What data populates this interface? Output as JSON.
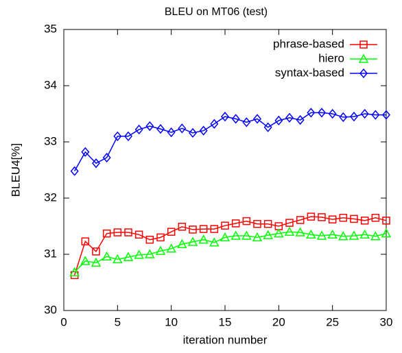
{
  "chart_data": {
    "type": "line",
    "title": "BLEU on MT06 (test)",
    "x_label": "iteration number",
    "y_label": "BLEU4[%]",
    "x": [
      1,
      2,
      3,
      4,
      5,
      6,
      7,
      8,
      9,
      10,
      11,
      12,
      13,
      14,
      15,
      16,
      17,
      18,
      19,
      20,
      21,
      22,
      23,
      24,
      25,
      26,
      27,
      28,
      29,
      30
    ],
    "series": [
      {
        "name": "phrase-based",
        "color": "#ff0000",
        "marker": "square",
        "values": [
          30.63,
          31.23,
          31.05,
          31.37,
          31.39,
          31.39,
          31.35,
          31.26,
          31.3,
          31.4,
          31.49,
          31.44,
          31.45,
          31.45,
          31.51,
          31.55,
          31.59,
          31.54,
          31.54,
          31.5,
          31.56,
          31.61,
          31.67,
          31.66,
          31.62,
          31.65,
          31.63,
          31.6,
          31.65,
          31.6
        ]
      },
      {
        "name": "hiero",
        "color": "#00ff00",
        "marker": "triangle",
        "values": [
          30.68,
          30.88,
          30.85,
          30.96,
          30.91,
          30.95,
          30.99,
          31.0,
          31.06,
          31.1,
          31.18,
          31.22,
          31.26,
          31.21,
          31.3,
          31.33,
          31.33,
          31.3,
          31.34,
          31.37,
          31.4,
          31.39,
          31.35,
          31.33,
          31.35,
          31.32,
          31.33,
          31.35,
          31.32,
          31.37
        ]
      },
      {
        "name": "syntax-based",
        "color": "#0000ff",
        "marker": "diamond",
        "values": [
          32.48,
          32.82,
          32.62,
          32.72,
          33.1,
          33.1,
          33.22,
          33.28,
          33.23,
          33.17,
          33.24,
          33.16,
          33.2,
          33.32,
          33.45,
          33.41,
          33.35,
          33.41,
          33.26,
          33.38,
          33.43,
          33.39,
          33.52,
          33.52,
          33.5,
          33.44,
          33.45,
          33.5,
          33.48,
          33.48
        ]
      }
    ],
    "xlim": [
      0,
      30
    ],
    "xticks": [
      0,
      5,
      10,
      15,
      20,
      25,
      30
    ],
    "ylim": [
      30,
      35
    ],
    "yticks": [
      30,
      31,
      32,
      33,
      34,
      35
    ],
    "legend": "top-right"
  }
}
